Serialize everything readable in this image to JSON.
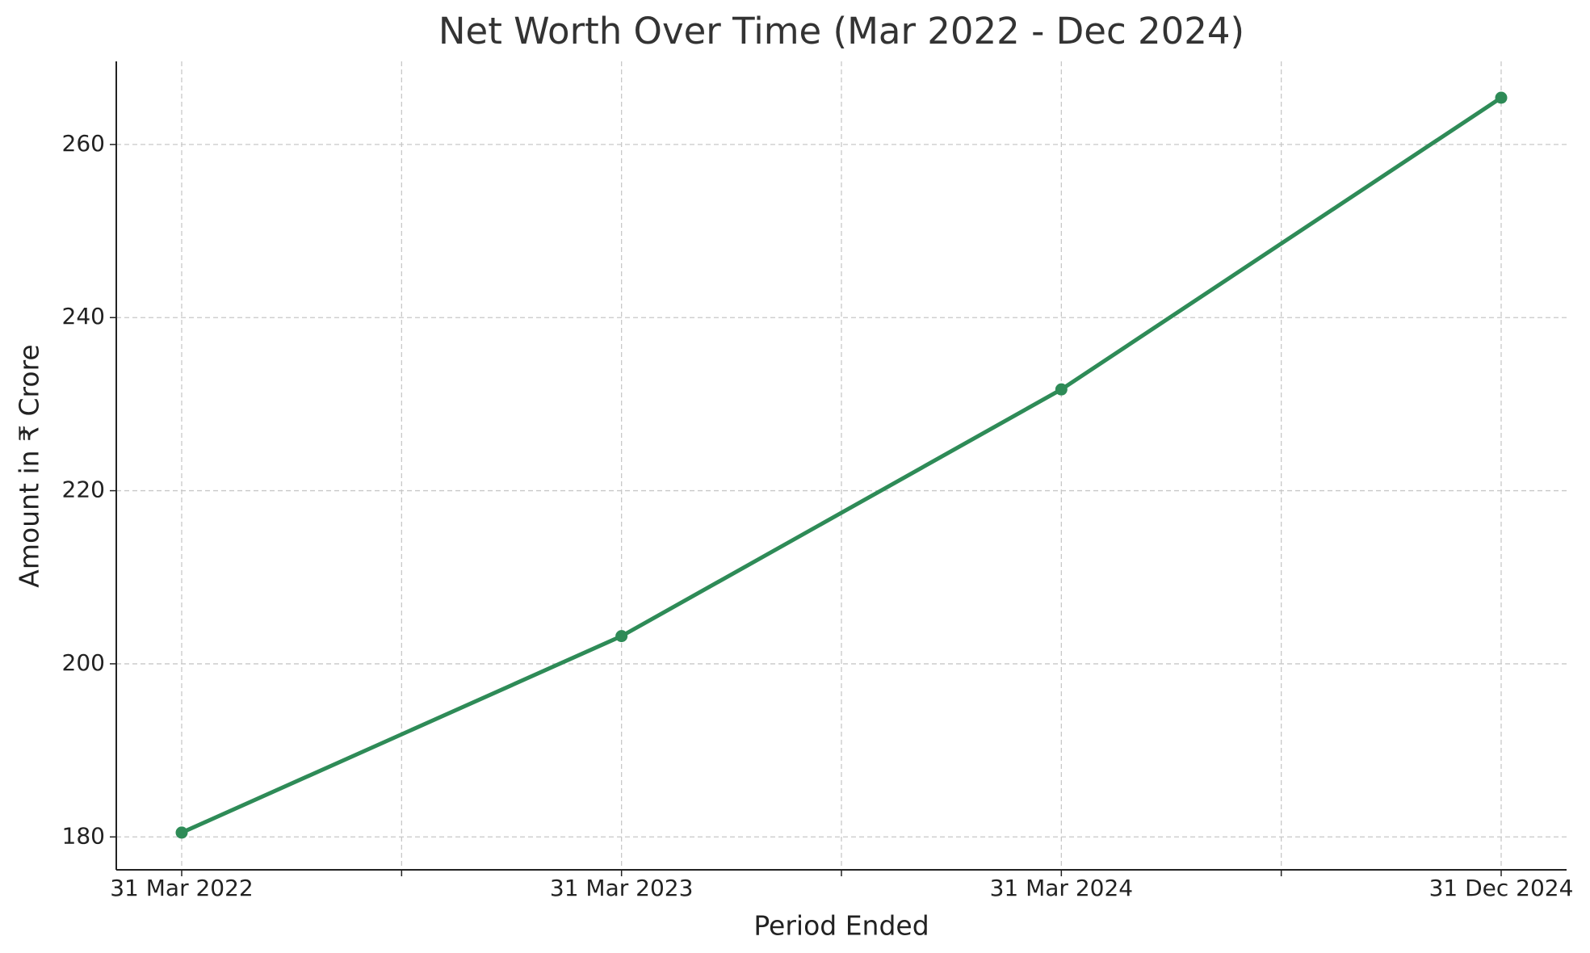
{
  "chart_data": {
    "type": "line",
    "title": "Net Worth Over Time (Mar 2022 - Dec 2024)",
    "x_label": "Period Ended",
    "y_label": "Amount in ₹ Crore",
    "categories": [
      "31 Mar 2022",
      "31 Mar 2023",
      "31 Mar 2024",
      "31 Dec 2024"
    ],
    "series": [
      {
        "name": "Net Worth",
        "color": "#2e8b57",
        "values": [
          180.5,
          203.2,
          231.7,
          265.4
        ]
      }
    ],
    "ylim": [
      176.2,
      269.6
    ],
    "yticks": [
      180,
      200,
      220,
      240,
      260
    ],
    "grid": true
  }
}
